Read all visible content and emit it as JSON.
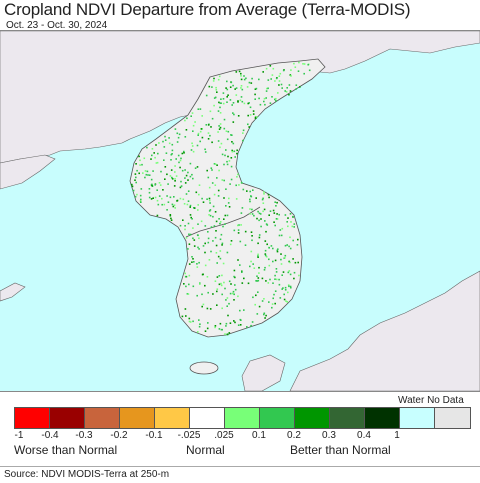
{
  "header": {
    "title": "Cropland NDVI Departure from Average (Terra-MODIS)",
    "date_range": "Oct. 23 - Oct. 30, 2024"
  },
  "map": {
    "ocean_color": "#c8fdfd",
    "land_color": "#ece8ee",
    "cropland_color": "#f0f0f0",
    "border_color": "#555555"
  },
  "legend": {
    "water_label": "Water No Data",
    "swatch_colors": [
      "#ff0000",
      "#990000",
      "#c8643c",
      "#e6961e",
      "#ffc846",
      "#ffffff",
      "#78ff78",
      "#32c850",
      "#009600",
      "#336633",
      "#003200",
      "#c8ffff",
      "#e6e6e6"
    ],
    "ticks": [
      "-1",
      "-0.4",
      "-0.3",
      "-0.2",
      "-0.1",
      "-.025",
      ".025",
      "0.1",
      "0.2",
      "0.3",
      "0.4",
      "1"
    ],
    "label_worse": "Worse than Normal",
    "label_normal": "Normal",
    "label_better": "Better than Normal"
  },
  "footer": {
    "source": "Source: NDVI MODIS-Terra at 250-m"
  }
}
